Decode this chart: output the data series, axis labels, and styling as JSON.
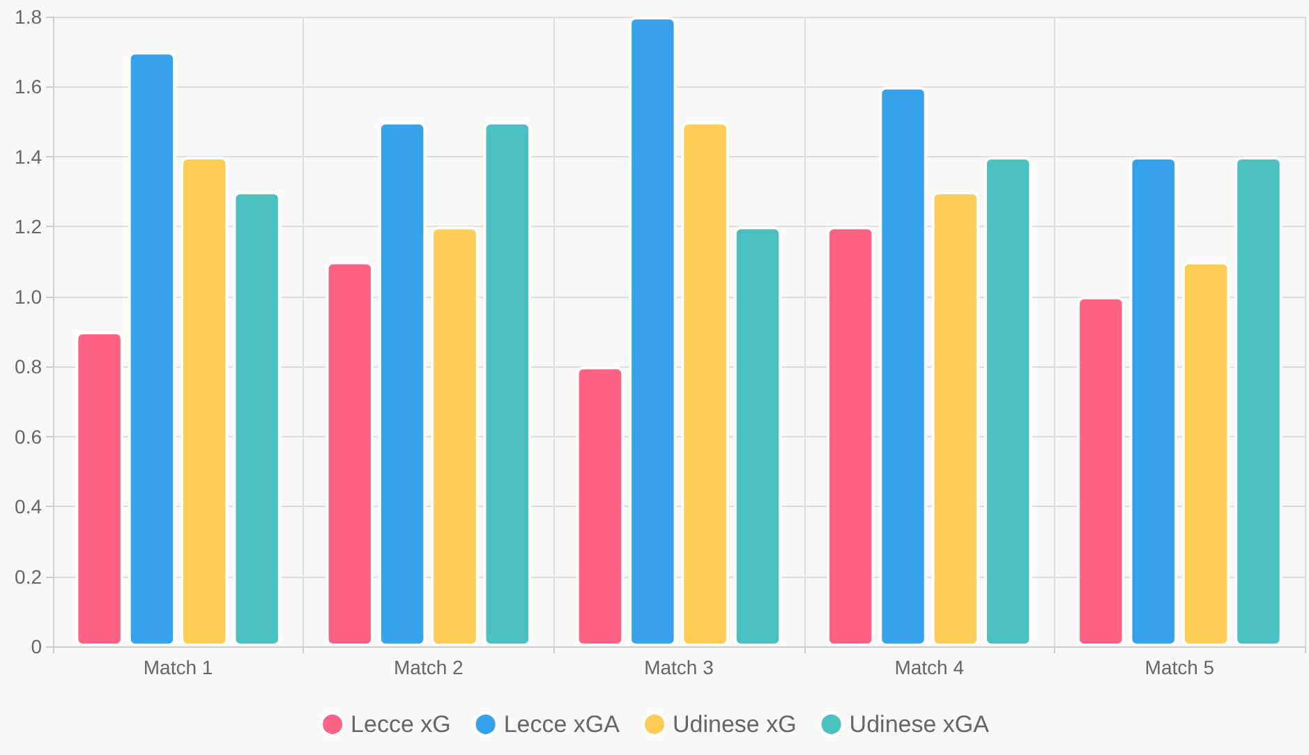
{
  "chart_data": {
    "type": "bar",
    "categories": [
      "Match 1",
      "Match 2",
      "Match 3",
      "Match 4",
      "Match 5"
    ],
    "series": [
      {
        "name": "Lecce xG",
        "color": "#ff6384",
        "values": [
          0.9,
          1.1,
          0.8,
          1.2,
          1.0
        ]
      },
      {
        "name": "Lecce xGA",
        "color": "#36a2eb",
        "values": [
          1.7,
          1.5,
          1.8,
          1.6,
          1.4
        ]
      },
      {
        "name": "Udinese xG",
        "color": "#ffcd56",
        "values": [
          1.4,
          1.2,
          1.5,
          1.3,
          1.1
        ]
      },
      {
        "name": "Udinese xGA",
        "color": "#4bc0c0",
        "values": [
          1.3,
          1.5,
          1.2,
          1.4,
          1.4
        ]
      }
    ],
    "ylim": [
      0,
      1.8
    ],
    "yticks": [
      0,
      0.2,
      0.4,
      0.6,
      0.8,
      {
        "value": 1,
        "label": "1.0"
      },
      1.2,
      1.4,
      1.6,
      1.8
    ],
    "grid": true,
    "legend": "bottom"
  }
}
